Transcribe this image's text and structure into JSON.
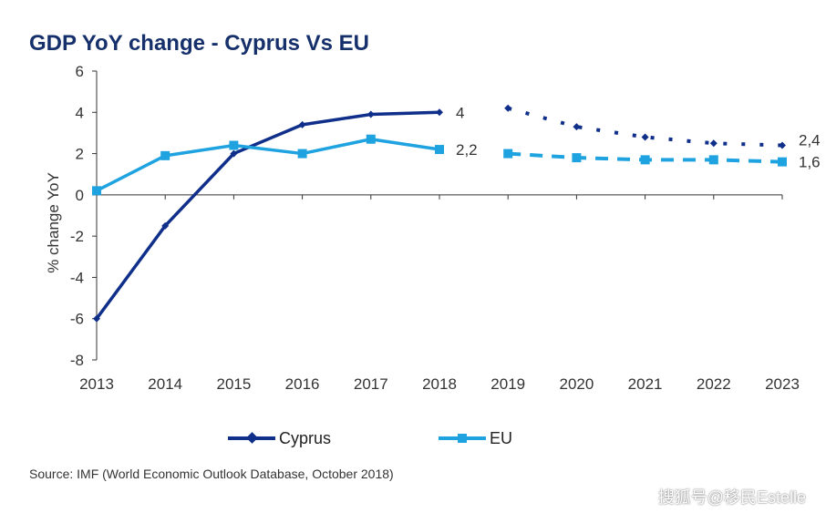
{
  "title": "GDP YoY change - Cyprus Vs EU",
  "colors": {
    "title": "#16306b",
    "cyprus": "#0f2f8a",
    "eu": "#1fa3e0",
    "axis": "#333333"
  },
  "chart_data": {
    "type": "line",
    "title": "GDP YoY change - Cyprus Vs EU",
    "xlabel": "",
    "ylabel": "% change YoY",
    "ylim": [
      -8,
      6
    ],
    "yticks": [
      "6",
      "4",
      "2",
      "0",
      "-2",
      "-4",
      "-6",
      "-8"
    ],
    "ytick_values": [
      6,
      4,
      2,
      0,
      -2,
      -4,
      -6,
      -8
    ],
    "categories": [
      "2013",
      "2014",
      "2015",
      "2016",
      "2017",
      "2018",
      "2019",
      "2020",
      "2021",
      "2022",
      "2023"
    ],
    "forecast_from": "2018",
    "series": [
      {
        "name": "Cyprus",
        "marker": "diamond",
        "values": [
          -6,
          -1.5,
          2.0,
          3.4,
          3.9,
          4.0,
          4.2,
          3.3,
          2.8,
          2.5,
          2.4
        ],
        "end_labels": [
          {
            "category": "2018",
            "text": "4"
          },
          {
            "category": "2023",
            "text": "2,4"
          }
        ]
      },
      {
        "name": "EU",
        "marker": "square",
        "values": [
          0.2,
          1.9,
          2.4,
          2.0,
          2.7,
          2.2,
          2.0,
          1.8,
          1.7,
          1.7,
          1.6
        ],
        "end_labels": [
          {
            "category": "2018",
            "text": "2,2"
          },
          {
            "category": "2023",
            "text": "1,6"
          }
        ]
      }
    ],
    "legend": [
      "Cyprus",
      "EU"
    ],
    "legend_position": "bottom"
  },
  "legend": {
    "cyprus_label": "Cyprus",
    "eu_label": "EU"
  },
  "source": "Source: IMF (World Economic Outlook Database, October 2018)",
  "watermark": "搜狐号@移民Estelle"
}
